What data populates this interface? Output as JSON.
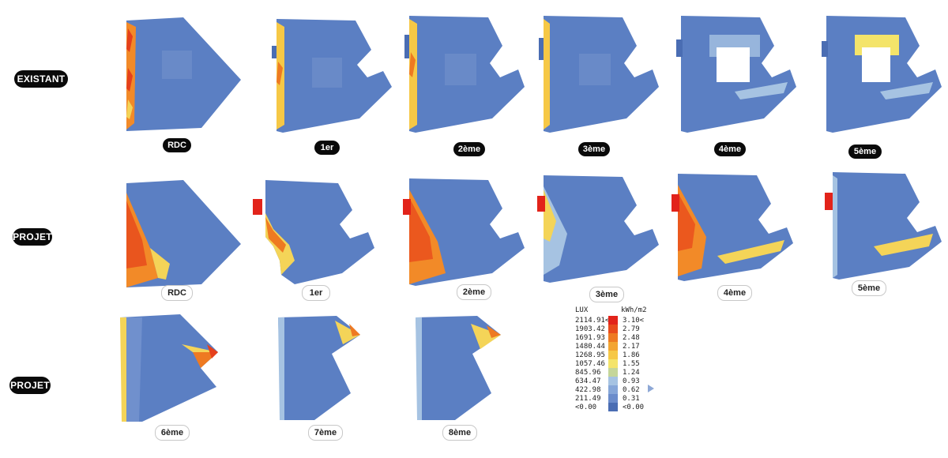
{
  "rows": [
    {
      "label": "EXISTANT"
    },
    {
      "label": "PROJET"
    },
    {
      "label": "PROJET"
    }
  ],
  "floors": {
    "existant": [
      "RDC",
      "1er",
      "2ème",
      "3ème",
      "4ème",
      "5ème"
    ],
    "projet": [
      "RDC",
      "1er",
      "2ème",
      "3ème",
      "4ème",
      "5ème"
    ],
    "projet_upper": [
      "6ème",
      "7ème",
      "8ème"
    ]
  },
  "legend": {
    "lux_unit": "LUX",
    "kwh_unit": "kWh/m2",
    "lux_values": [
      "2114.91<",
      "1903.42",
      "1691.93",
      "1480.44",
      "1268.95",
      "1057.46",
      "845.96",
      "634.47",
      "422.98",
      "211.49",
      "<0.00"
    ],
    "kwh_values": [
      "3.10<",
      "2.79",
      "2.48",
      "2.17",
      "1.86",
      "1.55",
      "1.24",
      "0.93",
      "0.62",
      "0.31",
      "<0.00"
    ],
    "colors": [
      "#e2231a",
      "#e84b1c",
      "#ee7a22",
      "#f3a532",
      "#f6c846",
      "#f4e46a",
      "#c5d699",
      "#a6c3e2",
      "#86a6d8",
      "#6b8ccb",
      "#4a6db3"
    ]
  },
  "colors": {
    "plan_base": "#5b7fc3",
    "plan_light": "#7e9bd3",
    "hot": "#f28a28",
    "hot_peak": "#e5401c",
    "warm": "#f4d458",
    "void": "#ffffff"
  }
}
